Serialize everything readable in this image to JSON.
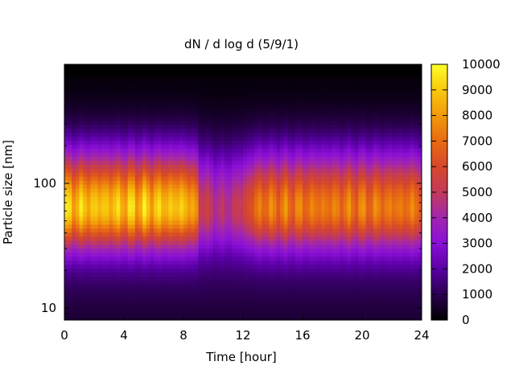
{
  "chart_data": {
    "type": "heatmap",
    "title": "dN / d log d (5/9/1)",
    "xlabel": "Time [hour]",
    "ylabel": "Particle size [nm]",
    "x_range": [
      0,
      24
    ],
    "x_ticks": [
      0,
      4,
      8,
      12,
      16,
      20,
      24
    ],
    "y_scale": "log",
    "y_range_nm": [
      8,
      900
    ],
    "y_ticks": [
      10,
      100
    ],
    "colorbar": {
      "range": [
        0,
        10000
      ],
      "ticks": [
        0,
        1000,
        2000,
        3000,
        4000,
        5000,
        6000,
        7000,
        8000,
        9000,
        10000
      ],
      "colormap": [
        "#000000",
        "#2a004f",
        "#5a00a5",
        "#8a0fd6",
        "#a126b0",
        "#c23a5a",
        "#d6482a",
        "#e86a12",
        "#f29a0a",
        "#f8c90e",
        "#ffff2a"
      ]
    },
    "features": {
      "mode_peak_size_nm": 65,
      "mode_band_nm": [
        30,
        110
      ],
      "peak_value_early": 8200,
      "peak_value_late": 6500,
      "low_concentration_period_hours": [
        8.3,
        13
      ]
    }
  }
}
